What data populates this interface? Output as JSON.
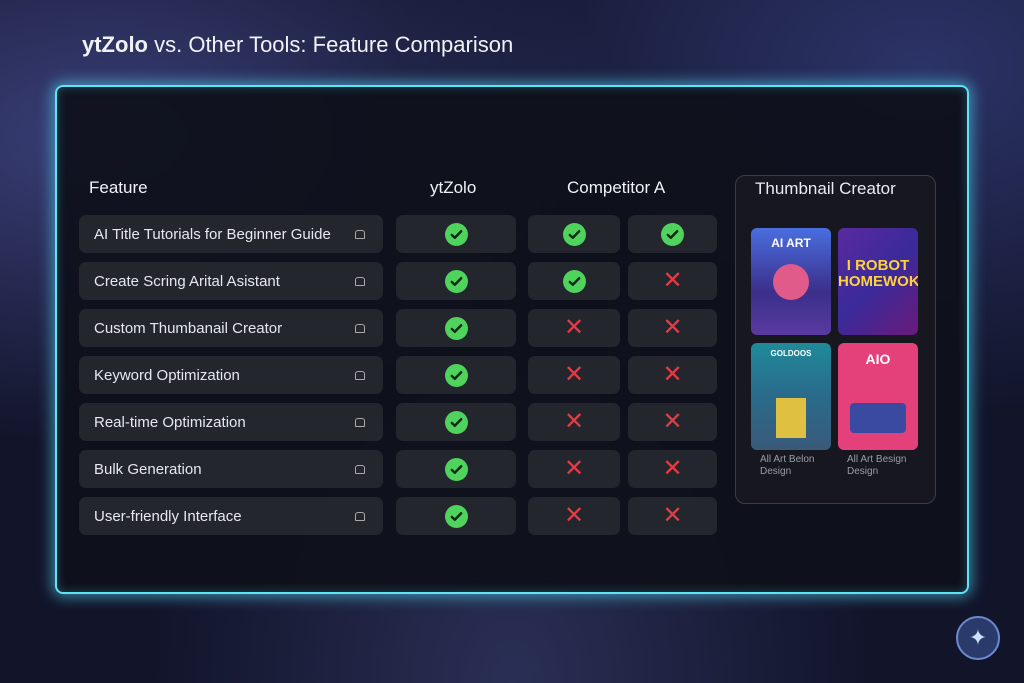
{
  "title": {
    "brand": "ytZolo",
    "rest": " vs. Other Tools: Feature Comparison"
  },
  "headers": {
    "feature": "Feature",
    "ytzolo": "ytZolo",
    "competitor": "Competitor A"
  },
  "rows": [
    {
      "feature": "AI Title Tutorials for Beginner Guide",
      "ytzolo": true,
      "comp1": true,
      "comp2": true
    },
    {
      "feature": "Create Scring Arital Asistant",
      "ytzolo": true,
      "comp1": true,
      "comp2": false
    },
    {
      "feature": "Custom Thumbanail Creator",
      "ytzolo": true,
      "comp1": false,
      "comp2": false
    },
    {
      "feature": "Keyword Optimization",
      "ytzolo": true,
      "comp1": false,
      "comp2": false
    },
    {
      "feature": "Real-time Optimization",
      "ytzolo": true,
      "comp1": false,
      "comp2": false
    },
    {
      "feature": "Bulk Generation",
      "ytzolo": true,
      "comp1": false,
      "comp2": false
    },
    {
      "feature": "User-friendly Interface",
      "ytzolo": true,
      "comp1": false,
      "comp2": false
    }
  ],
  "thumbnail_creator": {
    "title": "Thumbnail Creator",
    "thumbs": [
      {
        "text": "AI ART"
      },
      {
        "text": "I ROBOT HOMEWOK?!"
      },
      {
        "text": "GOLDOOS"
      },
      {
        "text": "AIO"
      }
    ],
    "captions": [
      "All Art Belon Design",
      "All Art Besign Design"
    ]
  },
  "colors": {
    "glow": "#5fe3f5",
    "check": "#4fd35c",
    "cross": "#e83a44"
  }
}
